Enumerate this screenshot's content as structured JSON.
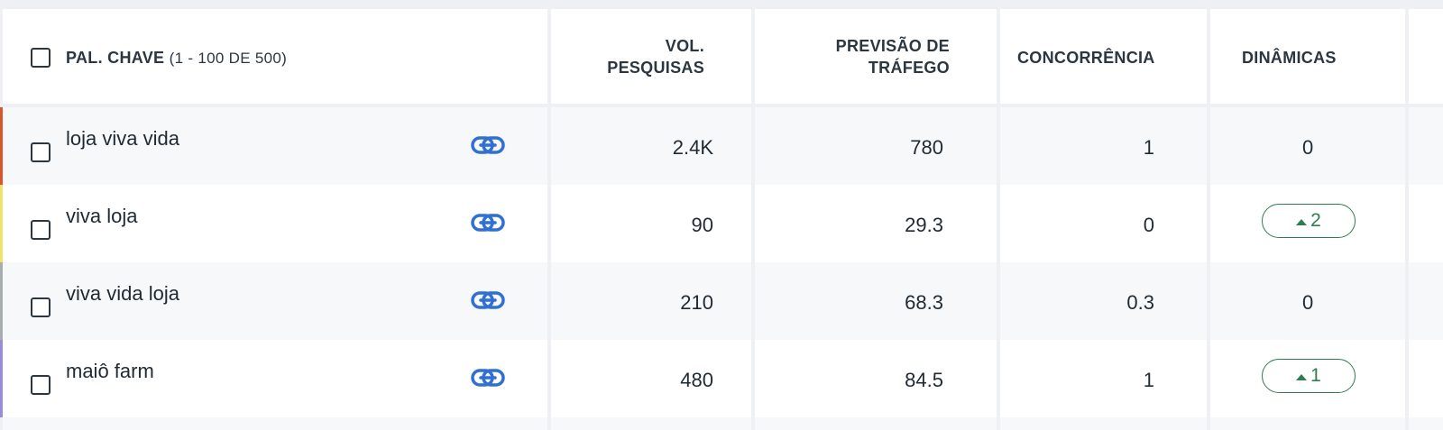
{
  "header": {
    "keyword_label": "PAL. CHAVE",
    "keyword_range": "(1 - 100 DE 500)",
    "volume_line1": "VOL.",
    "volume_line2": "PESQUISAS",
    "traffic_line1": "PREVISÃO DE",
    "traffic_line2": "TRÁFEGO",
    "competition": "CONCORRÊNCIA",
    "dynamics": "DINÂMICAS"
  },
  "rows": [
    {
      "keyword": "loja viva vida",
      "volume": "2.4K",
      "traffic": "780",
      "competition": "1",
      "dynamics": "0",
      "dynamics_badge": false,
      "stripe_color": "#d9552c"
    },
    {
      "keyword": "viva loja",
      "volume": "90",
      "traffic": "29.3",
      "competition": "0",
      "dynamics": "2",
      "dynamics_badge": true,
      "stripe_color": "#f0e26b"
    },
    {
      "keyword": "viva vida loja",
      "volume": "210",
      "traffic": "68.3",
      "competition": "0.3",
      "dynamics": "0",
      "dynamics_badge": false,
      "stripe_color": "#a7adad"
    },
    {
      "keyword": "maiô farm",
      "volume": "480",
      "traffic": "84.5",
      "competition": "1",
      "dynamics": "1",
      "dynamics_badge": true,
      "stripe_color": "#9b8be0"
    }
  ],
  "colors": {
    "link_icon": "#2f6fd6",
    "badge_up": "#2e7d4f"
  },
  "icons": {
    "link": "link-icon",
    "trend_up": "triangle-up-icon"
  }
}
